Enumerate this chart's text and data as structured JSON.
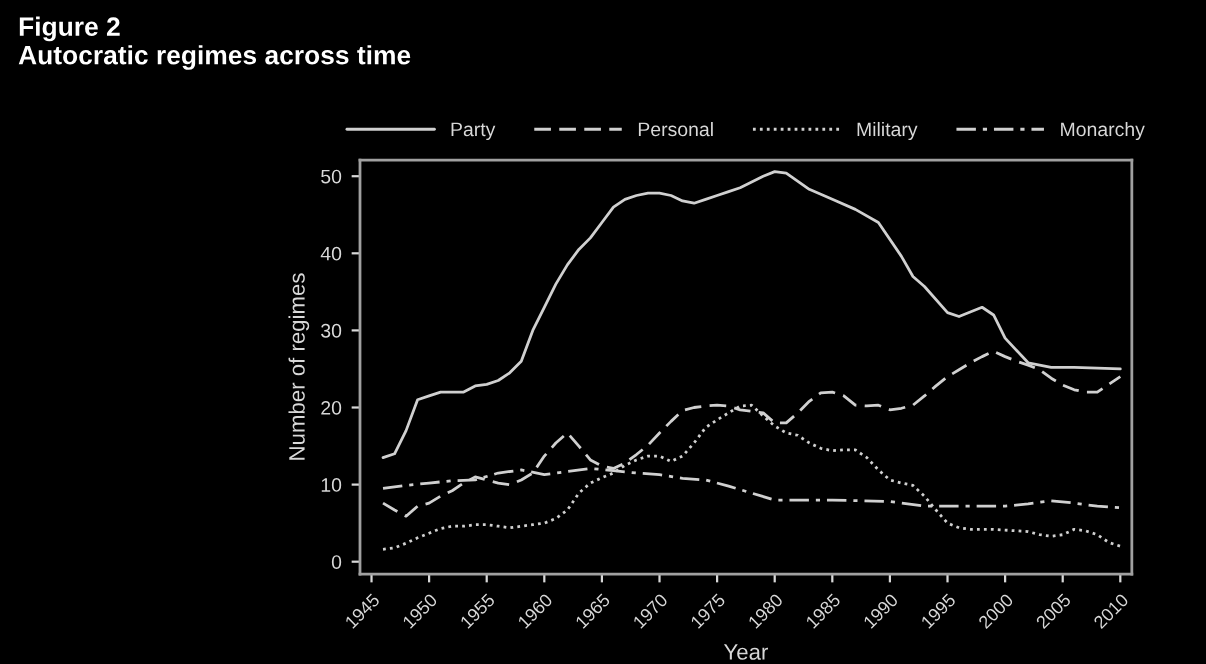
{
  "chart_data": {
    "type": "line",
    "title": "Figure 2\nAutocratic regimes across time",
    "xlabel": "Year",
    "ylabel": "Number of regimes",
    "xlim": [
      1944,
      2011
    ],
    "ylim": [
      -1.6,
      52.1
    ],
    "xticks": [
      1945,
      1950,
      1955,
      1960,
      1965,
      1970,
      1975,
      1980,
      1985,
      1990,
      1995,
      2000,
      2005,
      2010
    ],
    "yticks": [
      0,
      10,
      20,
      30,
      40,
      50
    ],
    "grid": false,
    "legend": "top",
    "marker": "none",
    "series": [
      {
        "name": "Party",
        "color": "#d0d0d0",
        "line_style": "solid",
        "x": [
          1946,
          1947,
          1948,
          1949,
          1950,
          1951,
          1952,
          1953,
          1954,
          1955,
          1956,
          1957,
          1958,
          1959,
          1960,
          1961,
          1962,
          1963,
          1964,
          1965,
          1966,
          1967,
          1968,
          1969,
          1970,
          1971,
          1972,
          1973,
          1974,
          1975,
          1976,
          1977,
          1979,
          1980,
          1981,
          1983,
          1985,
          1987,
          1989,
          1991,
          1992,
          1993,
          1995,
          1996,
          1998,
          1999,
          2000,
          2002,
          2004,
          2006,
          2010
        ],
        "values": [
          13.5,
          14,
          17,
          21,
          21.5,
          22,
          22,
          22,
          22.8,
          23,
          23.5,
          24.5,
          26,
          30,
          33,
          36,
          38.5,
          40.5,
          42,
          44,
          46,
          47,
          47.5,
          47.8,
          47.8,
          47.5,
          46.8,
          46.5,
          47,
          47.5,
          48,
          48.5,
          50,
          50.6,
          50.4,
          48.3,
          47,
          45.7,
          44,
          39.6,
          37,
          35.7,
          32.3,
          31.8,
          33,
          32,
          29,
          25.8,
          25.2,
          25.2,
          25
        ]
      },
      {
        "name": "Personal",
        "color": "#d0d0d0",
        "line_style": "dashed",
        "x": [
          1946,
          1947,
          1948,
          1949,
          1950,
          1951,
          1952,
          1953,
          1954,
          1955,
          1956,
          1957,
          1958,
          1959,
          1960,
          1961,
          1962,
          1963,
          1964,
          1965,
          1966,
          1967,
          1968,
          1969,
          1970,
          1971,
          1972,
          1973,
          1974,
          1975,
          1976,
          1977,
          1979,
          1980,
          1981,
          1982,
          1983,
          1984,
          1985,
          1986,
          1987,
          1988,
          1989,
          1990,
          1991,
          1992,
          1993,
          1994,
          1995,
          1996,
          1997,
          1998,
          1999,
          2000,
          2001,
          2002,
          2003,
          2004,
          2005,
          2006,
          2007,
          2008,
          2009,
          2010
        ],
        "values": [
          7.6,
          6.7,
          5.9,
          7.2,
          7.6,
          8.5,
          9.2,
          10.2,
          11,
          10.6,
          10.2,
          10,
          10.6,
          11.5,
          13.7,
          15.4,
          16.7,
          15,
          13.2,
          12.4,
          12.1,
          12.8,
          13.9,
          15.1,
          16.7,
          18.2,
          19.6,
          20,
          20.2,
          20.3,
          20.2,
          19.7,
          19.3,
          18,
          18,
          19.3,
          20.8,
          21.9,
          22,
          21.5,
          20.3,
          20.2,
          20.3,
          19.7,
          19.9,
          20.3,
          21.5,
          22.8,
          24,
          24.9,
          25.8,
          26.6,
          27.3,
          26.6,
          26,
          25.5,
          24.9,
          23.8,
          22.9,
          22.3,
          22,
          22,
          23,
          24
        ]
      },
      {
        "name": "Military",
        "color": "#d0d0d0",
        "line_style": "dotted",
        "x": [
          1946,
          1947,
          1948,
          1949,
          1950,
          1951,
          1952,
          1953,
          1954,
          1955,
          1956,
          1957,
          1958,
          1959,
          1960,
          1961,
          1962,
          1963,
          1964,
          1965,
          1966,
          1967,
          1968,
          1969,
          1970,
          1971,
          1972,
          1973,
          1974,
          1975,
          1976,
          1977,
          1978,
          1979,
          1980,
          1981,
          1982,
          1983,
          1984,
          1985,
          1986,
          1987,
          1988,
          1989,
          1990,
          1991,
          1992,
          1993,
          1994,
          1995,
          1996,
          1997,
          1998,
          1999,
          2000,
          2001,
          2002,
          2003,
          2004,
          2005,
          2006,
          2007,
          2008,
          2009,
          2010
        ],
        "values": [
          1.6,
          1.8,
          2.4,
          3.1,
          3.7,
          4.3,
          4.6,
          4.6,
          4.8,
          4.8,
          4.6,
          4.4,
          4.6,
          4.8,
          5,
          5.6,
          6.7,
          8.9,
          10.2,
          10.9,
          11.5,
          12.5,
          13.2,
          13.7,
          13.7,
          13,
          13.7,
          15.4,
          17.4,
          18.4,
          19.3,
          20.2,
          20.3,
          18.9,
          17.6,
          16.7,
          16.4,
          15.4,
          14.7,
          14.4,
          14.5,
          14.5,
          13.5,
          11.9,
          10.6,
          10.2,
          9.9,
          8.5,
          6.7,
          5,
          4.4,
          4.2,
          4.2,
          4.2,
          4.1,
          4,
          3.9,
          3.5,
          3.3,
          3.5,
          4.2,
          4,
          3.5,
          2.5,
          2
        ]
      },
      {
        "name": "Monarchy",
        "color": "#d0d0d0",
        "line_style": "dashdot",
        "x": [
          1946,
          1948,
          1950,
          1952,
          1954,
          1956,
          1958,
          1960,
          1962,
          1964,
          1966,
          1968,
          1970,
          1972,
          1974,
          1976,
          1978,
          1980,
          1985,
          1990,
          1993,
          1995,
          2000,
          2002,
          2004,
          2006,
          2008,
          2010
        ],
        "values": [
          9.5,
          9.9,
          10.2,
          10.5,
          10.6,
          11.5,
          11.9,
          11.3,
          11.7,
          12.1,
          11.8,
          11.5,
          11.3,
          10.8,
          10.6,
          9.8,
          8.9,
          8,
          8,
          7.8,
          7.2,
          7.2,
          7.2,
          7.5,
          7.9,
          7.6,
          7.2,
          7
        ]
      }
    ]
  }
}
